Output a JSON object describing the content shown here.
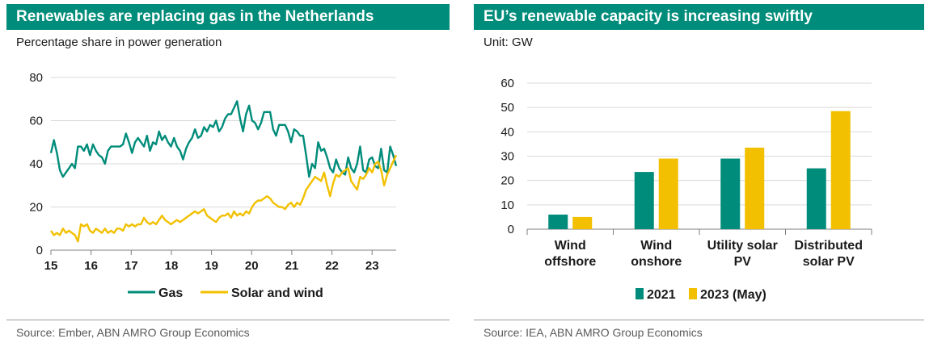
{
  "colors": {
    "teal": "#008c7a",
    "yellow": "#f2c000",
    "grid": "#d9d9d9",
    "axis": "#7f7f7f"
  },
  "left_panel": {
    "title": "Renewables are replacing gas in the Netherlands",
    "subtitle": "Percentage share in power generation",
    "source": "Source: Ember, ABN AMRO Group Economics"
  },
  "right_panel": {
    "title": "EU’s renewable capacity is increasing swiftly",
    "subtitle": "Unit: GW",
    "source": "Source: IEA, ABN AMRO Group Economics"
  },
  "chart_data": [
    {
      "type": "line",
      "title": "Renewables are replacing gas in the Netherlands",
      "ylabel": "Percentage share in power generation",
      "x_ticks": [
        "15",
        "16",
        "17",
        "18",
        "19",
        "20",
        "21",
        "22",
        "23"
      ],
      "x_range": [
        2015.0,
        2023.6
      ],
      "ylim": [
        0,
        80
      ],
      "y_ticks": [
        "0",
        "20",
        "40",
        "60",
        "80"
      ],
      "grid": true,
      "legend_position": "bottom",
      "series": [
        {
          "name": "Gas",
          "color": "#008c7a",
          "values": [
            45,
            51,
            45,
            37,
            34,
            36,
            38,
            40,
            38,
            48,
            48,
            46,
            49,
            44,
            49,
            46,
            44,
            43,
            40,
            46,
            48,
            48,
            48,
            48,
            49,
            54,
            50,
            45,
            50,
            52,
            50,
            48,
            53,
            46,
            50,
            49,
            55,
            51,
            53,
            50,
            48,
            52,
            48,
            46,
            42,
            47,
            50,
            52,
            56,
            52,
            53,
            57,
            55,
            58,
            57,
            60,
            55,
            57,
            61,
            63,
            63,
            66,
            69,
            61,
            55,
            63,
            67,
            60,
            59,
            56,
            59,
            64,
            64,
            64,
            56,
            53,
            58,
            58,
            58,
            55,
            50,
            56,
            55,
            53,
            53,
            44,
            34,
            40,
            38,
            50,
            46,
            47,
            43,
            38,
            36,
            42,
            38,
            36,
            35,
            43,
            38,
            36,
            40,
            48,
            37,
            36,
            42,
            43,
            39,
            38,
            47,
            37,
            36,
            48,
            44,
            39
          ]
        },
        {
          "name": "Solar and wind",
          "color": "#f2c000",
          "values": [
            9,
            7,
            8,
            7,
            10,
            8,
            9,
            8,
            7,
            4,
            12,
            11,
            12,
            9,
            8,
            10,
            9,
            8,
            10,
            8,
            9,
            8,
            10,
            10,
            9,
            12,
            11,
            12,
            11,
            12,
            12,
            15,
            13,
            12,
            13,
            12,
            14,
            16,
            14,
            13,
            12,
            13,
            14,
            13,
            14,
            15,
            16,
            17,
            18,
            17,
            18,
            19,
            16,
            15,
            14,
            13,
            15,
            16,
            16,
            17,
            15,
            18,
            16,
            17,
            16,
            18,
            17,
            20,
            22,
            23,
            23,
            24,
            25,
            24,
            22,
            21,
            20,
            20,
            19,
            21,
            22,
            20,
            22,
            21,
            24,
            28,
            30,
            32,
            34,
            33,
            32,
            36,
            30,
            25,
            31,
            35,
            34,
            36,
            37,
            38,
            32,
            30,
            28,
            34,
            33,
            35,
            38,
            36,
            40,
            41,
            37,
            30,
            35,
            38,
            41,
            44
          ]
        }
      ]
    },
    {
      "type": "bar",
      "title": "EU’s renewable capacity is increasing swiftly",
      "ylabel": "Unit: GW",
      "categories": [
        [
          "Wind",
          "offshore"
        ],
        [
          "Wind",
          "onshore"
        ],
        [
          "Utility solar",
          "PV"
        ],
        [
          "Distributed",
          "solar PV"
        ]
      ],
      "ylim": [
        0,
        60
      ],
      "y_ticks": [
        "0",
        "10",
        "20",
        "30",
        "40",
        "50",
        "60"
      ],
      "grid": true,
      "legend_position": "bottom",
      "series": [
        {
          "name": "2021",
          "color": "#008c7a",
          "values": [
            6,
            23.5,
            29,
            25
          ]
        },
        {
          "name": "2023 (May)",
          "color": "#f2c000",
          "values": [
            5,
            29,
            33.5,
            48.5
          ]
        }
      ]
    }
  ]
}
